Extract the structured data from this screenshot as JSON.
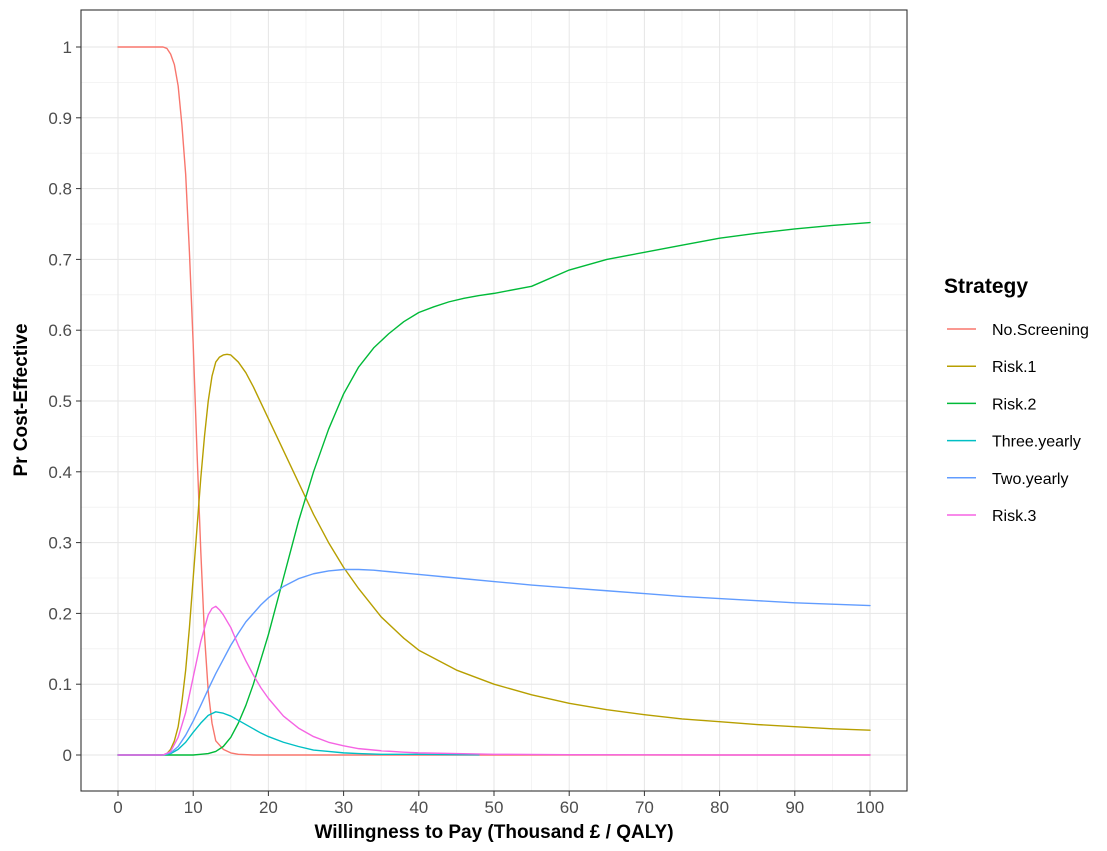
{
  "chart_data": {
    "type": "line",
    "xlabel": "Willingness to Pay (Thousand £ / QALY)",
    "ylabel": "Pr Cost-Effective",
    "xlim": [
      0,
      100
    ],
    "ylim": [
      0,
      1
    ],
    "xticks": [
      0,
      10,
      20,
      30,
      40,
      50,
      60,
      70,
      80,
      90,
      100
    ],
    "yticks": [
      0,
      0.1,
      0.2,
      0.3,
      0.4,
      0.5,
      0.6,
      0.7,
      0.8,
      0.9,
      1
    ],
    "xtick_labels": [
      "0",
      "10",
      "20",
      "30",
      "40",
      "50",
      "60",
      "70",
      "80",
      "90",
      "100"
    ],
    "ytick_labels": [
      "0",
      "0.1",
      "0.2",
      "0.3",
      "0.4",
      "0.5",
      "0.6",
      "0.7",
      "0.8",
      "0.9",
      "1"
    ],
    "grid": true,
    "legend_placement": "right",
    "legend_title": "Strategy",
    "series": [
      {
        "name": "No.Screening",
        "color": "#F8766D",
        "x": [
          0,
          2,
          4,
          5,
          6,
          6.5,
          7,
          7.5,
          8,
          8.5,
          9,
          9.5,
          10,
          10.5,
          11,
          11.5,
          12,
          12.5,
          13,
          14,
          15,
          16,
          18,
          20,
          25,
          30,
          40,
          50,
          60,
          70,
          80,
          90,
          100
        ],
        "y": [
          1,
          1,
          1,
          1,
          1,
          0.998,
          0.99,
          0.975,
          0.945,
          0.89,
          0.82,
          0.71,
          0.58,
          0.43,
          0.29,
          0.17,
          0.09,
          0.045,
          0.02,
          0.008,
          0.003,
          0.001,
          0,
          0,
          0,
          0,
          0,
          0,
          0,
          0,
          0,
          0,
          0
        ]
      },
      {
        "name": "Risk.1",
        "color": "#B79F00",
        "x": [
          0,
          2,
          4,
          6,
          6.5,
          7,
          7.5,
          8,
          8.5,
          9,
          9.5,
          10,
          10.5,
          11,
          11.5,
          12,
          12.5,
          13,
          13.5,
          14,
          14.5,
          15,
          16,
          17,
          18,
          20,
          22,
          24,
          26,
          28,
          30,
          32,
          35,
          38,
          40,
          45,
          50,
          55,
          60,
          65,
          70,
          75,
          80,
          85,
          90,
          95,
          100
        ],
        "y": [
          0,
          0,
          0,
          0,
          0.002,
          0.008,
          0.02,
          0.04,
          0.075,
          0.12,
          0.18,
          0.25,
          0.32,
          0.39,
          0.45,
          0.5,
          0.535,
          0.555,
          0.562,
          0.565,
          0.566,
          0.565,
          0.555,
          0.54,
          0.52,
          0.475,
          0.43,
          0.385,
          0.34,
          0.3,
          0.265,
          0.235,
          0.195,
          0.165,
          0.148,
          0.12,
          0.1,
          0.085,
          0.073,
          0.064,
          0.057,
          0.051,
          0.047,
          0.043,
          0.04,
          0.037,
          0.035
        ]
      },
      {
        "name": "Risk.2",
        "color": "#00BA38",
        "x": [
          0,
          5,
          8,
          9,
          10,
          11,
          12,
          13,
          14,
          15,
          16,
          17,
          18,
          19,
          20,
          21,
          22,
          23,
          24,
          25,
          26,
          27,
          28,
          29,
          30,
          32,
          34,
          36,
          38,
          40,
          42,
          44,
          46,
          48,
          50,
          55,
          60,
          65,
          70,
          75,
          80,
          85,
          90,
          95,
          100
        ],
        "y": [
          0,
          0,
          0,
          0,
          0,
          0.001,
          0.002,
          0.005,
          0.012,
          0.025,
          0.045,
          0.07,
          0.1,
          0.135,
          0.17,
          0.21,
          0.25,
          0.29,
          0.33,
          0.365,
          0.4,
          0.43,
          0.46,
          0.485,
          0.51,
          0.548,
          0.575,
          0.595,
          0.612,
          0.625,
          0.633,
          0.64,
          0.645,
          0.649,
          0.652,
          0.662,
          0.685,
          0.7,
          0.71,
          0.72,
          0.73,
          0.737,
          0.743,
          0.748,
          0.752
        ]
      },
      {
        "name": "Three.yearly",
        "color": "#00BFC4",
        "x": [
          0,
          5,
          6,
          7,
          8,
          9,
          10,
          11,
          12,
          13,
          14,
          15,
          16,
          17,
          18,
          19,
          20,
          22,
          24,
          26,
          28,
          30,
          32,
          35,
          40,
          45,
          48
        ],
        "y": [
          0,
          0,
          0,
          0.002,
          0.008,
          0.018,
          0.032,
          0.045,
          0.056,
          0.061,
          0.059,
          0.055,
          0.049,
          0.043,
          0.037,
          0.031,
          0.026,
          0.018,
          0.012,
          0.007,
          0.005,
          0.003,
          0.002,
          0.001,
          0.001,
          0.0005,
          0.0002
        ]
      },
      {
        "name": "Two.yearly",
        "color": "#619CFF",
        "x": [
          0,
          5,
          6,
          7,
          8,
          9,
          10,
          11,
          12,
          13,
          14,
          15,
          16,
          17,
          18,
          19,
          20,
          22,
          24,
          26,
          28,
          30,
          32,
          34,
          36,
          38,
          40,
          45,
          50,
          55,
          60,
          65,
          70,
          75,
          80,
          85,
          90,
          95,
          100
        ],
        "y": [
          0,
          0,
          0,
          0.003,
          0.012,
          0.028,
          0.048,
          0.07,
          0.093,
          0.115,
          0.135,
          0.155,
          0.172,
          0.188,
          0.2,
          0.212,
          0.222,
          0.238,
          0.249,
          0.256,
          0.26,
          0.262,
          0.262,
          0.261,
          0.259,
          0.257,
          0.255,
          0.25,
          0.245,
          0.24,
          0.236,
          0.232,
          0.228,
          0.224,
          0.221,
          0.218,
          0.215,
          0.213,
          0.211
        ]
      },
      {
        "name": "Risk.3",
        "color": "#F564E3",
        "x": [
          0,
          5,
          6,
          7,
          8,
          9,
          10,
          11,
          12,
          12.5,
          13,
          13.5,
          14,
          15,
          16,
          17,
          18,
          19,
          20,
          22,
          24,
          26,
          28,
          30,
          32,
          35,
          38,
          40,
          45,
          50,
          60,
          70,
          80,
          90,
          100
        ],
        "y": [
          0,
          0,
          0,
          0.005,
          0.025,
          0.06,
          0.11,
          0.16,
          0.198,
          0.207,
          0.21,
          0.205,
          0.198,
          0.18,
          0.155,
          0.133,
          0.113,
          0.095,
          0.08,
          0.055,
          0.038,
          0.026,
          0.018,
          0.013,
          0.009,
          0.006,
          0.004,
          0.003,
          0.002,
          0.001,
          0.0005,
          0.0002,
          0,
          0,
          0
        ]
      }
    ]
  }
}
